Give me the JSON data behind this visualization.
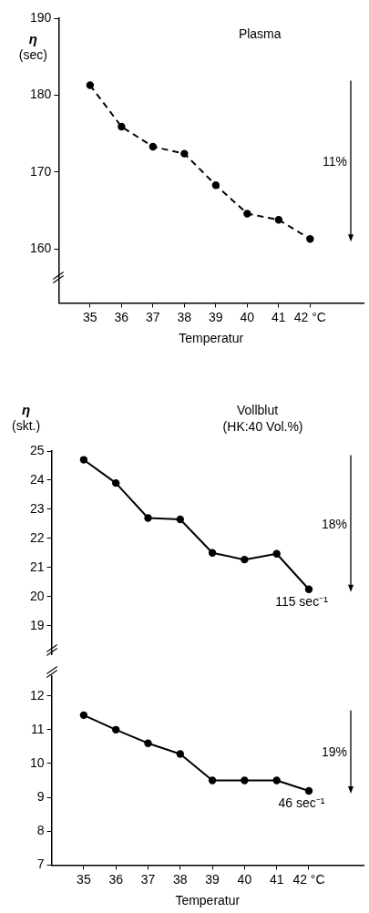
{
  "chart_data": [
    {
      "type": "line",
      "title": "Plasma",
      "ylabel": "η (sec)",
      "xlabel": "Temperatur",
      "x": [
        35,
        36,
        37,
        38,
        39,
        40,
        41,
        42
      ],
      "series": [
        {
          "color": "#000000",
          "values": [
            181.3,
            175.9,
            173.3,
            172.4,
            168.3,
            164.6,
            163.8,
            161.3
          ]
        }
      ],
      "xlim": [
        34,
        43.7
      ],
      "xticks": [
        35,
        36,
        37,
        38,
        39,
        40,
        41,
        {
          "value": 42,
          "label": "42 °C"
        }
      ],
      "ylim": [
        153,
        190
      ],
      "yticks": [
        160,
        170,
        180,
        190
      ],
      "annotations": [
        "11%"
      ],
      "grid": false,
      "legend": false,
      "marker": "circle",
      "line_style": "dashed"
    },
    {
      "type": "line",
      "title": "Vollblut",
      "subtitle": "(HK:40 Vol.%)",
      "ylabel": "η (skt.)",
      "x": [
        35,
        36,
        37,
        38,
        39,
        40,
        41,
        42
      ],
      "series": [
        {
          "name": "115 sec⁻¹",
          "color": "#000000",
          "values": [
            24.7,
            23.9,
            22.7,
            22.65,
            21.5,
            21.27,
            21.47,
            20.25
          ]
        }
      ],
      "ylim": [
        18,
        25
      ],
      "yticks": [
        19,
        20,
        21,
        22,
        23,
        24,
        25
      ],
      "tick_labels": "y",
      "annotations": [
        "18%"
      ],
      "grid": false,
      "legend": false,
      "marker": "circle",
      "line_style": "solid"
    },
    {
      "type": "line",
      "xlabel": "Temperatur",
      "x": [
        35,
        36,
        37,
        38,
        39,
        40,
        41,
        42
      ],
      "series": [
        {
          "name": "46 sec⁻¹",
          "color": "#000000",
          "values": [
            11.43,
            11.0,
            10.6,
            10.28,
            9.5,
            9.5,
            9.5,
            9.19
          ]
        }
      ],
      "xlim": [
        34,
        43.7
      ],
      "xticks": [
        35,
        36,
        37,
        38,
        39,
        40,
        41,
        {
          "value": 42,
          "label": "42 °C"
        }
      ],
      "ylim": [
        7,
        12.6
      ],
      "yticks": [
        7,
        8,
        9,
        10,
        11,
        12
      ],
      "annotations": [
        "19%"
      ],
      "grid": false,
      "legend": false,
      "marker": "circle",
      "line_style": "solid"
    }
  ]
}
